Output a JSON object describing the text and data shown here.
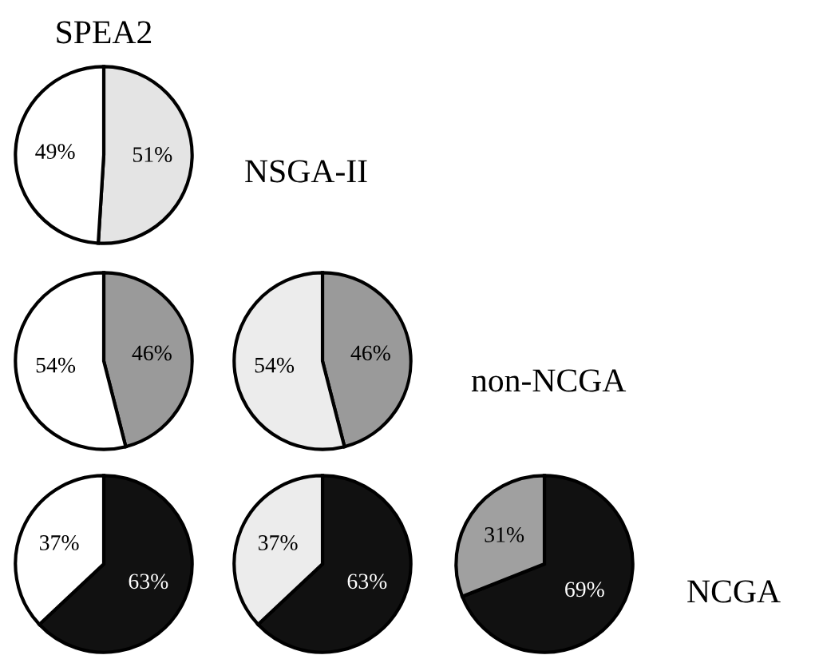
{
  "chart_data": [
    {
      "type": "pie",
      "title": "SPEA2",
      "categories": [
        null,
        null
      ],
      "values": [
        51,
        49
      ],
      "colors": [
        "#e4e4e4",
        "#ffffff"
      ],
      "value_labels": [
        "51%",
        "49%"
      ],
      "annotations": [
        "NSGA-II"
      ]
    },
    {
      "type": "pie",
      "categories": [
        null,
        null
      ],
      "values": [
        46,
        54
      ],
      "colors": [
        "#9a9a9a",
        "#ffffff"
      ],
      "value_labels": [
        "46%",
        "54%"
      ]
    },
    {
      "type": "pie",
      "categories": [
        null,
        null
      ],
      "values": [
        46,
        54
      ],
      "colors": [
        "#9a9a9a",
        "#ececec"
      ],
      "value_labels": [
        "46%",
        "54%"
      ],
      "annotations": [
        "non-NCGA"
      ]
    },
    {
      "type": "pie",
      "categories": [
        null,
        null
      ],
      "values": [
        63,
        37
      ],
      "colors": [
        "#111111",
        "#ffffff"
      ],
      "value_labels": [
        "63%",
        "37%"
      ]
    },
    {
      "type": "pie",
      "categories": [
        null,
        null
      ],
      "values": [
        63,
        37
      ],
      "colors": [
        "#111111",
        "#ececec"
      ],
      "value_labels": [
        "63%",
        "37%"
      ]
    },
    {
      "type": "pie",
      "categories": [
        null,
        null
      ],
      "values": [
        69,
        31
      ],
      "colors": [
        "#111111",
        "#a0a0a0"
      ],
      "value_labels": [
        "69%",
        "31%"
      ],
      "annotations": [
        "NCGA"
      ]
    }
  ]
}
